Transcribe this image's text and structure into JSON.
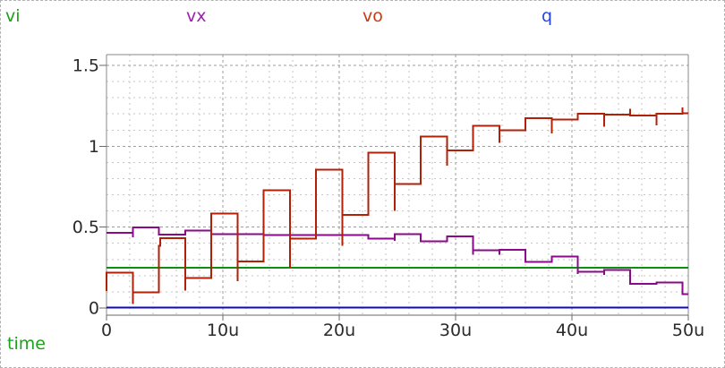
{
  "legend": {
    "items": [
      {
        "label": "vi",
        "color": "#1ca11c"
      },
      {
        "label": "vx",
        "color": "#a01eb4"
      },
      {
        "label": "vo",
        "color": "#cc3914"
      },
      {
        "label": "q",
        "color": "#2444e0"
      }
    ]
  },
  "chart_data": {
    "type": "line",
    "title": "",
    "xlabel": "time",
    "ylabel": "",
    "x_unit": "u",
    "xlim": [
      0,
      50
    ],
    "ylim": [
      -0.045,
      1.566
    ],
    "grid": true,
    "x_minor_step": 2,
    "y_minor_step": 0.1,
    "x_ticks": [
      {
        "label": "0",
        "value": 0
      },
      {
        "label": "10u",
        "value": 10
      },
      {
        "label": "20u",
        "value": 20
      },
      {
        "label": "30u",
        "value": 30
      },
      {
        "label": "40u",
        "value": 40
      },
      {
        "label": "50u",
        "value": 50
      }
    ],
    "y_ticks": [
      {
        "label": "0",
        "value": 0
      },
      {
        "label": "0.5",
        "value": 0.5
      },
      {
        "label": "1",
        "value": 1
      },
      {
        "label": "1.5",
        "value": 1.5
      }
    ],
    "tick_color": "#2a2a2a",
    "axis_color": "#8a8a8a",
    "grid_major_color": "#9e9e9e",
    "grid_minor_color": "#c6c6c6",
    "x_title_color": "#1ca11c",
    "series": [
      {
        "name": "vi",
        "color": "#0f8f0f",
        "width": 2,
        "points": [
          [
            0,
            0.25
          ],
          [
            50,
            0.25
          ]
        ]
      },
      {
        "name": "vx",
        "color": "#8a0a8a",
        "width": 2,
        "points": [
          [
            0,
            0.465
          ],
          [
            2.25,
            0.465
          ],
          [
            2.25,
            0.438
          ],
          [
            2.25,
            0.498
          ],
          [
            4.5,
            0.498
          ],
          [
            4.5,
            0.455
          ],
          [
            6.75,
            0.455
          ],
          [
            6.75,
            0.478
          ],
          [
            9,
            0.478
          ],
          [
            9,
            0.44
          ],
          [
            9,
            0.458
          ],
          [
            11.25,
            0.458
          ],
          [
            11.25,
            0.438
          ],
          [
            11.25,
            0.457
          ],
          [
            13.5,
            0.457
          ],
          [
            13.5,
            0.452
          ],
          [
            15.75,
            0.452
          ],
          [
            15.75,
            0.468
          ],
          [
            15.75,
            0.452
          ],
          [
            18,
            0.452
          ],
          [
            20.25,
            0.452
          ],
          [
            22.5,
            0.452
          ],
          [
            22.5,
            0.428
          ],
          [
            24.75,
            0.428
          ],
          [
            24.75,
            0.415
          ],
          [
            24.75,
            0.458
          ],
          [
            27,
            0.458
          ],
          [
            27,
            0.411
          ],
          [
            29.25,
            0.411
          ],
          [
            29.25,
            0.443
          ],
          [
            31.5,
            0.443
          ],
          [
            31.5,
            0.33
          ],
          [
            31.5,
            0.356
          ],
          [
            33.75,
            0.356
          ],
          [
            33.75,
            0.33
          ],
          [
            33.75,
            0.36
          ],
          [
            36,
            0.36
          ],
          [
            36,
            0.284
          ],
          [
            38.25,
            0.284
          ],
          [
            38.25,
            0.318
          ],
          [
            40.5,
            0.318
          ],
          [
            40.5,
            0.21
          ],
          [
            40.5,
            0.223
          ],
          [
            42.75,
            0.223
          ],
          [
            42.75,
            0.205
          ],
          [
            42.75,
            0.234
          ],
          [
            45,
            0.234
          ],
          [
            45,
            0.149
          ],
          [
            47.25,
            0.149
          ],
          [
            47.25,
            0.159
          ],
          [
            49.5,
            0.159
          ],
          [
            49.5,
            0.087
          ],
          [
            50,
            0.087
          ]
        ]
      },
      {
        "name": "vo",
        "color": "#b02208",
        "width": 2,
        "points": [
          [
            0,
            0.105
          ],
          [
            0,
            0.22
          ],
          [
            2.25,
            0.22
          ],
          [
            2.25,
            0.026
          ],
          [
            2.25,
            0.096
          ],
          [
            4.5,
            0.096
          ],
          [
            4.5,
            0.385
          ],
          [
            4.6,
            0.385
          ],
          [
            4.6,
            0.431
          ],
          [
            6.75,
            0.431
          ],
          [
            6.75,
            0.108
          ],
          [
            6.75,
            0.186
          ],
          [
            9,
            0.186
          ],
          [
            9,
            0.584
          ],
          [
            11.25,
            0.584
          ],
          [
            11.25,
            0.167
          ],
          [
            11.25,
            0.289
          ],
          [
            13.5,
            0.289
          ],
          [
            13.5,
            0.727
          ],
          [
            15.75,
            0.727
          ],
          [
            15.75,
            0.25
          ],
          [
            15.75,
            0.429
          ],
          [
            18,
            0.429
          ],
          [
            18,
            0.854
          ],
          [
            20.25,
            0.854
          ],
          [
            20.25,
            0.385
          ],
          [
            20.25,
            0.575
          ],
          [
            22.5,
            0.575
          ],
          [
            22.5,
            0.961
          ],
          [
            24.75,
            0.961
          ],
          [
            24.75,
            0.6
          ],
          [
            24.75,
            0.766
          ],
          [
            27,
            0.766
          ],
          [
            27,
            1.059
          ],
          [
            29.25,
            1.059
          ],
          [
            29.25,
            0.88
          ],
          [
            29.25,
            0.974
          ],
          [
            31.5,
            0.974
          ],
          [
            31.5,
            1.127
          ],
          [
            33.75,
            1.127
          ],
          [
            33.75,
            1.02
          ],
          [
            33.75,
            1.1
          ],
          [
            36,
            1.1
          ],
          [
            36,
            1.173
          ],
          [
            38.25,
            1.173
          ],
          [
            38.25,
            1.08
          ],
          [
            38.25,
            1.164
          ],
          [
            40.5,
            1.164
          ],
          [
            40.5,
            1.2
          ],
          [
            42.75,
            1.2
          ],
          [
            42.75,
            1.12
          ],
          [
            42.75,
            1.196
          ],
          [
            45,
            1.196
          ],
          [
            45,
            1.232
          ],
          [
            45,
            1.19
          ],
          [
            47.25,
            1.19
          ],
          [
            47.25,
            1.13
          ],
          [
            47.25,
            1.2
          ],
          [
            49.5,
            1.2
          ],
          [
            49.5,
            1.24
          ],
          [
            49.5,
            1.205
          ],
          [
            50,
            1.205
          ]
        ]
      },
      {
        "name": "q",
        "color": "#0a0ac0",
        "width": 2,
        "points": [
          [
            0,
            0.004
          ],
          [
            50,
            0.004
          ]
        ]
      }
    ]
  }
}
